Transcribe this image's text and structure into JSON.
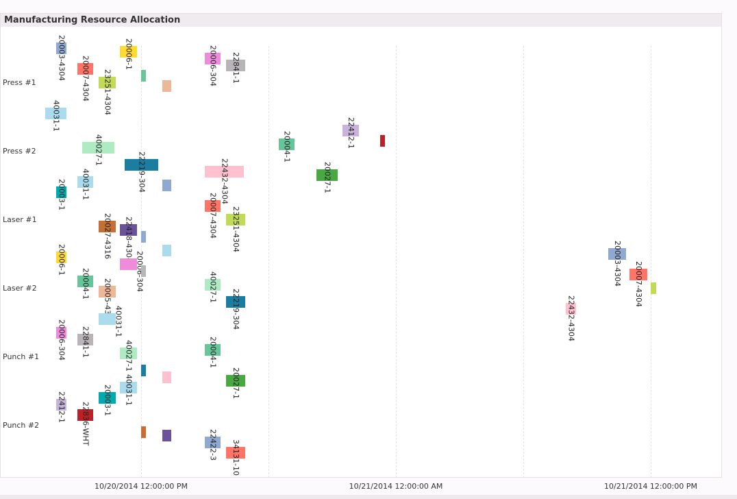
{
  "window": {
    "title": "Manufacturing Resource Allocation"
  },
  "chart_data": {
    "type": "gantt",
    "title": "Manufacturing Resource Allocation",
    "resources": [
      "Press #1",
      "Press #2",
      "Laser #1",
      "Laser #2",
      "Punch #1",
      "Punch #2"
    ],
    "x_ticks": [
      "10/20/2014 12:00:00 PM",
      "10/21/2014 12:00:00 AM",
      "10/21/2014 12:00:00 PM"
    ],
    "xlim": [
      "2014-10-20 05:23",
      "2014-10-21 15:24"
    ],
    "grid": true,
    "tasks": [
      {
        "resource": "Press #1",
        "label": "20003-4304",
        "start": "2014-10-20 08:00",
        "end": "2014-10-20 08:29",
        "color": "#8fa9d1"
      },
      {
        "resource": "Press #1",
        "label": "20007-4304",
        "start": "2014-10-20 09:00",
        "end": "2014-10-20 09:45",
        "color": "#ff7466"
      },
      {
        "resource": "Press #1",
        "label": "23251-4304",
        "start": "2014-10-20 10:00",
        "end": "2014-10-20 10:48",
        "color": "#c1db57"
      },
      {
        "resource": "Press #1",
        "label": "20006-1",
        "start": "2014-10-20 11:00",
        "end": "2014-10-20 11:48",
        "color": "#ffdb2f"
      },
      {
        "resource": "Press #1",
        "label": "",
        "start": "2014-10-20 12:00",
        "end": "2014-10-20 12:14",
        "color": "#66c69a"
      },
      {
        "resource": "Press #1",
        "label": "",
        "start": "2014-10-20 13:00",
        "end": "2014-10-20 13:25",
        "color": "#ecb897"
      },
      {
        "resource": "Press #1",
        "label": "20006-304",
        "start": "2014-10-20 15:00",
        "end": "2014-10-20 15:45",
        "color": "#ef8bdb"
      },
      {
        "resource": "Press #1",
        "label": "22841-1",
        "start": "2014-10-20 16:00",
        "end": "2014-10-20 16:54",
        "color": "#b8b4b8"
      },
      {
        "resource": "Press #1",
        "label": "40031-1",
        "start": "2014-10-20 07:29",
        "end": "2014-10-20 08:29",
        "color": "#abdcee"
      },
      {
        "resource": "Press #2",
        "label": "40027-1",
        "start": "2014-10-20 09:14",
        "end": "2014-10-20 10:45",
        "color": "#aeebc2"
      },
      {
        "resource": "Press #2",
        "label": "22219-304",
        "start": "2014-10-20 11:14",
        "end": "2014-10-20 12:48",
        "color": "#1b7ea1"
      },
      {
        "resource": "Press #2",
        "label": "40031-1",
        "start": "2014-10-20 09:00",
        "end": "2014-10-20 09:45",
        "color": "#abdcee"
      },
      {
        "resource": "Press #2",
        "label": "",
        "start": "2014-10-20 13:00",
        "end": "2014-10-20 13:25",
        "color": "#8fa9d1"
      },
      {
        "resource": "Press #2",
        "label": "22432-4304",
        "start": "2014-10-20 15:00",
        "end": "2014-10-20 16:50",
        "color": "#ffc0d0"
      },
      {
        "resource": "Press #2",
        "label": "20004-1",
        "start": "2014-10-20 18:29",
        "end": "2014-10-20 19:14",
        "color": "#66c69a"
      },
      {
        "resource": "Press #2",
        "label": "22412-1",
        "start": "2014-10-20 21:29",
        "end": "2014-10-20 22:15",
        "color": "#c8b3da"
      },
      {
        "resource": "Press #2",
        "label": "",
        "start": "2014-10-20 23:15",
        "end": "2014-10-20 23:29",
        "color": "#bd2127"
      },
      {
        "resource": "Press #2",
        "label": "20027-1",
        "start": "2014-10-20 20:15",
        "end": "2014-10-20 21:15",
        "color": "#4aa842"
      },
      {
        "resource": "Laser #1",
        "label": "20003-1",
        "start": "2014-10-20 08:00",
        "end": "2014-10-20 08:29",
        "color": "#00abaf"
      },
      {
        "resource": "Laser #1",
        "label": "20007-4304",
        "start": "2014-10-20 15:00",
        "end": "2014-10-20 15:45",
        "color": "#ff7466"
      },
      {
        "resource": "Laser #1",
        "label": "23251-4304",
        "start": "2014-10-20 16:00",
        "end": "2014-10-20 16:54",
        "color": "#c1db57"
      },
      {
        "resource": "Laser #1",
        "label": "20027-4316",
        "start": "2014-10-20 10:00",
        "end": "2014-10-20 10:48",
        "color": "#c56f32"
      },
      {
        "resource": "Laser #1",
        "label": "22418-4304",
        "start": "2014-10-20 11:00",
        "end": "2014-10-20 11:48",
        "color": "#6b529b"
      },
      {
        "resource": "Laser #1",
        "label": "",
        "start": "2014-10-20 12:00",
        "end": "2014-10-20 12:14",
        "color": "#8fa9d1"
      },
      {
        "resource": "Laser #1",
        "label": "",
        "start": "2014-10-20 13:00",
        "end": "2014-10-20 13:25",
        "color": "#abdcee"
      },
      {
        "resource": "Laser #2",
        "label": "20006-1",
        "start": "2014-10-20 08:00",
        "end": "2014-10-20 08:29",
        "color": "#ffdb2f"
      },
      {
        "resource": "Laser #2",
        "label": "20006-304",
        "start": "2014-10-20 11:00",
        "end": "2014-10-20 11:48",
        "color": "#ef8bdb"
      },
      {
        "resource": "Laser #2",
        "label": "",
        "start": "2014-10-20 12:00",
        "end": "2014-10-20 12:14",
        "color": "#b8b4b8"
      },
      {
        "resource": "Laser #2",
        "label": "20004-1",
        "start": "2014-10-20 09:00",
        "end": "2014-10-20 09:45",
        "color": "#66c69a"
      },
      {
        "resource": "Laser #2",
        "label": "20005-4304",
        "start": "2014-10-20 10:00",
        "end": "2014-10-20 10:48",
        "color": "#ecb897"
      },
      {
        "resource": "Laser #2",
        "label": "40031-1",
        "start": "2014-10-20 10:00",
        "end": "2014-10-20 10:48",
        "color": "#abdcee"
      },
      {
        "resource": "Laser #2",
        "label": "40027-1",
        "start": "2014-10-20 15:00",
        "end": "2014-10-20 15:45",
        "color": "#aeebc2"
      },
      {
        "resource": "Laser #2",
        "label": "22219-304",
        "start": "2014-10-20 16:00",
        "end": "2014-10-20 16:54",
        "color": "#1b7ea1"
      },
      {
        "resource": "Laser #2",
        "label": "20003-4304",
        "start": "2014-10-21 10:00",
        "end": "2014-10-21 10:50",
        "color": "#8fa9d1"
      },
      {
        "resource": "Laser #2",
        "label": "20007-4304",
        "start": "2014-10-21 11:00",
        "end": "2014-10-21 11:50",
        "color": "#ff7466"
      },
      {
        "resource": "Laser #2",
        "label": "",
        "start": "2014-10-21 12:00",
        "end": "2014-10-21 12:15",
        "color": "#c1db57"
      },
      {
        "resource": "Laser #2",
        "label": "22432-4304",
        "start": "2014-10-21 08:00",
        "end": "2014-10-21 08:29",
        "color": "#ffc0d0"
      },
      {
        "resource": "Punch #1",
        "label": "20006-304",
        "start": "2014-10-20 08:00",
        "end": "2014-10-20 08:29",
        "color": "#ef8bdb"
      },
      {
        "resource": "Punch #1",
        "label": "22841-1",
        "start": "2014-10-20 09:00",
        "end": "2014-10-20 09:45",
        "color": "#b8b4b8"
      },
      {
        "resource": "Punch #1",
        "label": "40027-1",
        "start": "2014-10-20 11:00",
        "end": "2014-10-20 11:48",
        "color": "#aeebc2"
      },
      {
        "resource": "Punch #1",
        "label": "",
        "start": "2014-10-20 12:00",
        "end": "2014-10-20 12:14",
        "color": "#1b7ea1"
      },
      {
        "resource": "Punch #1",
        "label": "",
        "start": "2014-10-20 13:00",
        "end": "2014-10-20 13:25",
        "color": "#ffc0d0"
      },
      {
        "resource": "Punch #1",
        "label": "20004-1",
        "start": "2014-10-20 15:00",
        "end": "2014-10-20 15:45",
        "color": "#66c69a"
      },
      {
        "resource": "Punch #1",
        "label": "20027-1",
        "start": "2014-10-20 16:00",
        "end": "2014-10-20 16:54",
        "color": "#4aa842"
      },
      {
        "resource": "Punch #2",
        "label": "40031-1",
        "start": "2014-10-20 11:00",
        "end": "2014-10-20 11:48",
        "color": "#abdcee"
      },
      {
        "resource": "Punch #2",
        "label": "20003-1",
        "start": "2014-10-20 10:00",
        "end": "2014-10-20 10:48",
        "color": "#00abaf"
      },
      {
        "resource": "Punch #2",
        "label": "22412-1",
        "start": "2014-10-20 08:00",
        "end": "2014-10-20 08:29",
        "color": "#c8b3da"
      },
      {
        "resource": "Punch #2",
        "label": "22836-WHT",
        "start": "2014-10-20 09:00",
        "end": "2014-10-20 09:45",
        "color": "#bd2127"
      },
      {
        "resource": "Punch #2",
        "label": "",
        "start": "2014-10-20 12:00",
        "end": "2014-10-20 12:14",
        "color": "#c56f32"
      },
      {
        "resource": "Punch #2",
        "label": "",
        "start": "2014-10-20 13:00",
        "end": "2014-10-20 13:25",
        "color": "#6b529b"
      },
      {
        "resource": "Punch #2",
        "label": "22422-3",
        "start": "2014-10-20 15:00",
        "end": "2014-10-20 15:45",
        "color": "#8fa9d1"
      },
      {
        "resource": "Punch #2",
        "label": "34131-10",
        "start": "2014-10-20 16:00",
        "end": "2014-10-20 16:54",
        "color": "#ff7466"
      }
    ]
  }
}
